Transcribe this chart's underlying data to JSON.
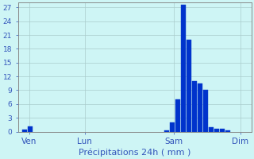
{
  "xlabel": "Précipitations 24h ( mm )",
  "background_color": "#cef5f5",
  "bar_color": "#0033cc",
  "bar_edge_color": "#1144cc",
  "grid_color": "#aacccc",
  "text_color": "#3355bb",
  "ylim": [
    0,
    28
  ],
  "yticks": [
    0,
    3,
    6,
    9,
    12,
    15,
    18,
    21,
    24,
    27
  ],
  "day_labels": [
    "Ven",
    "Lun",
    "Sam",
    "Dim"
  ],
  "day_positions": [
    8,
    48,
    112,
    160
  ],
  "xlim": [
    0,
    168
  ],
  "bar_data": [
    [
      5,
      0.4
    ],
    [
      9,
      1.2
    ],
    [
      107,
      0.35
    ],
    [
      111,
      2.0
    ],
    [
      115,
      7.0
    ],
    [
      119,
      27.5
    ],
    [
      123,
      20.0
    ],
    [
      127,
      11.0
    ],
    [
      131,
      10.5
    ],
    [
      135,
      9.0
    ],
    [
      139,
      1.0
    ],
    [
      143,
      0.7
    ],
    [
      147,
      0.7
    ],
    [
      151,
      0.35
    ]
  ],
  "bar_width": 3.5
}
